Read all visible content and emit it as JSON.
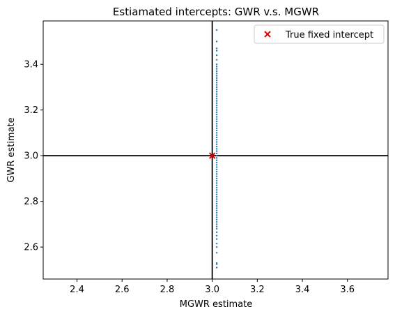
{
  "chart_data": {
    "type": "scatter",
    "title": "Estiamated intercepts: GWR v.s. MGWR",
    "xlabel": "MGWR estimate",
    "ylabel": "GWR estimate",
    "xlim": [
      2.25,
      3.78
    ],
    "ylim": [
      2.46,
      3.59
    ],
    "xticks": [
      "2.4",
      "2.6",
      "2.8",
      "3.0",
      "3.2",
      "3.4",
      "3.6"
    ],
    "yticks": [
      "2.6",
      "2.8",
      "3.0",
      "3.2",
      "3.4"
    ],
    "grid": false,
    "legend_position": "top-right",
    "reference_lines": {
      "x": 3.0,
      "y": 3.0
    },
    "series": [
      {
        "kind": "estimates",
        "marker": "dot",
        "color": "#1f77b4",
        "x_value": 3.02,
        "y_values": [
          2.51,
          2.525,
          2.53,
          2.575,
          2.6,
          2.615,
          2.635,
          2.65,
          2.665,
          2.68,
          2.69,
          2.7,
          2.71,
          2.72,
          2.73,
          2.74,
          2.75,
          2.76,
          2.77,
          2.78,
          2.79,
          2.8,
          2.81,
          2.82,
          2.83,
          2.84,
          2.85,
          2.86,
          2.87,
          2.88,
          2.89,
          2.9,
          2.91,
          2.92,
          2.93,
          2.94,
          2.95,
          2.96,
          2.97,
          2.98,
          2.99,
          3.0,
          3.01,
          3.02,
          3.03,
          3.04,
          3.05,
          3.06,
          3.07,
          3.08,
          3.09,
          3.1,
          3.11,
          3.12,
          3.13,
          3.14,
          3.15,
          3.16,
          3.17,
          3.18,
          3.19,
          3.2,
          3.21,
          3.22,
          3.23,
          3.24,
          3.25,
          3.26,
          3.27,
          3.28,
          3.29,
          3.3,
          3.31,
          3.32,
          3.33,
          3.34,
          3.35,
          3.36,
          3.37,
          3.38,
          3.39,
          3.4,
          3.42,
          3.44,
          3.46,
          3.47,
          3.5,
          3.55
        ]
      },
      {
        "name": "True fixed intercept",
        "marker": "x",
        "color": "#e00000",
        "x": [
          3.0
        ],
        "y": [
          3.0
        ]
      }
    ]
  }
}
